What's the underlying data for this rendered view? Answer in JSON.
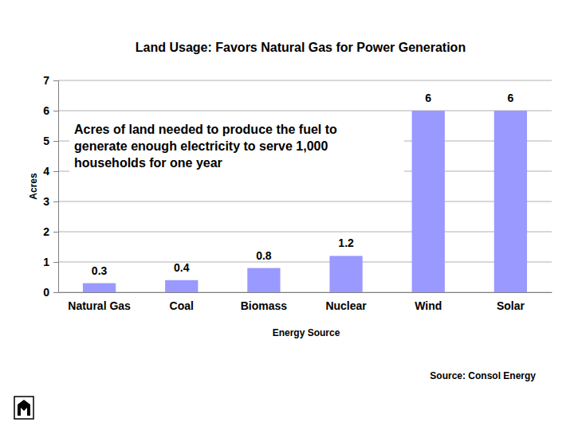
{
  "chart_data": {
    "type": "bar",
    "title": "Land Usage: Favors Natural Gas for Power Generation",
    "annotations": [
      "Acres of land needed to produce the fuel to",
      "generate enough electricity to serve 1,000",
      "households for one year"
    ],
    "source": "Source: Consol Energy",
    "x_label": "Energy Source",
    "y_label": "Acres",
    "categories": [
      "Natural Gas",
      "Coal",
      "Biomass",
      "Nuclear",
      "Wind",
      "Solar"
    ],
    "values": [
      0.3,
      0.4,
      0.8,
      1.2,
      6,
      6
    ],
    "color": "#9999ff",
    "ylim": [
      0,
      7
    ],
    "yticks": [
      0,
      1,
      2,
      3,
      4,
      5,
      6,
      7
    ],
    "grid": true,
    "data_labels": true
  }
}
